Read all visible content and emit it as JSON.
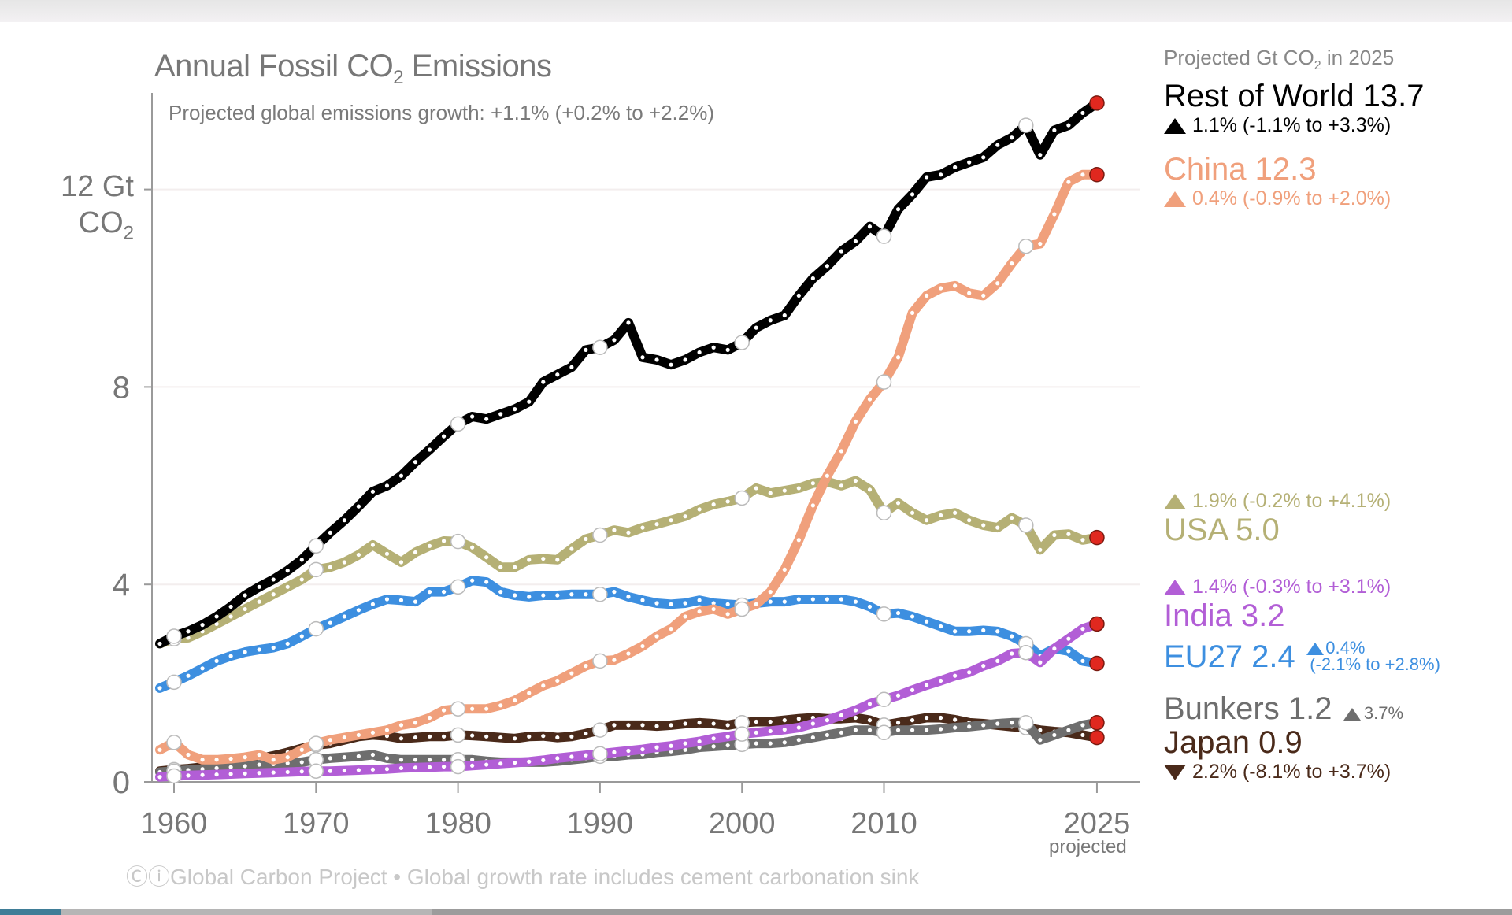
{
  "title": "Annual Fossil CO",
  "title_sub": "2",
  "title_end": " Emissions",
  "subtitle": "Projected global emissions growth: +1.1% (+0.2% to +2.2%)",
  "y_unit_line1": "12 Gt",
  "y_unit_line2": "CO",
  "y_unit_sub": "2",
  "x_projected_label": "projected",
  "footer": "ⒸⓘGlobal Carbon Project  •  Global growth rate includes cement carbonation sink",
  "legend": {
    "header_pre": "Projected Gt CO",
    "header_sub": "2",
    "header_post": " in 2025",
    "entries": [
      {
        "key": "row",
        "name": "Rest of World 13.7",
        "change": "1.1% (-1.1% to +3.3%)",
        "direction": "up",
        "color": "#000000"
      },
      {
        "key": "china",
        "name": "China 12.3",
        "change": "0.4% (-0.9% to +2.0%)",
        "direction": "up",
        "color": "#f0a07c"
      },
      {
        "key": "usa",
        "name": "USA 5.0",
        "change": "1.9% (-0.2% to +4.1%)",
        "direction": "up",
        "color": "#b5b075"
      },
      {
        "key": "india",
        "name": "India 3.2",
        "change": "1.4% (-0.3% to +3.1%)",
        "direction": "up",
        "color": "#b25ed6"
      },
      {
        "key": "eu27",
        "name": "EU27 2.4",
        "change_line1": "0.4%",
        "change_line2": "(-2.1% to +2.8%)",
        "direction": "up",
        "color": "#3d8fe0"
      },
      {
        "key": "bunkers",
        "name": "Bunkers 1.2",
        "change": "3.7%",
        "direction": "up",
        "color": "#6e6e6e"
      },
      {
        "key": "japan",
        "name": "Japan 0.9",
        "change": "2.2% (-8.1% to +3.7%)",
        "direction": "down",
        "color": "#4a2a1a"
      }
    ]
  },
  "chart_data": {
    "type": "line",
    "title": "Annual Fossil CO2 Emissions",
    "subtitle": "Projected global emissions growth: +1.1% (+0.2% to +2.2%)",
    "xlabel": "",
    "ylabel": "Gt CO2",
    "xlim": [
      1958.5,
      2027
    ],
    "ylim": [
      0,
      14
    ],
    "yticks": [
      0,
      4,
      8,
      12
    ],
    "ytick_labels": [
      "0",
      "4",
      "8",
      "12 Gt"
    ],
    "xticks": [
      1960,
      1970,
      1980,
      1990,
      2000,
      2010,
      2025
    ],
    "xtick_labels": [
      "1960",
      "1970",
      "1980",
      "1990",
      "2000",
      "2010",
      "2025"
    ],
    "grid": "horizontal",
    "legend": "right",
    "x_start": 1959,
    "x_end": 2025,
    "highlight_years": [
      1960,
      1970,
      1980,
      1990,
      2000,
      2010,
      2020
    ],
    "projected_year": 2025,
    "series": [
      {
        "name": "Rest of World",
        "color": "#000000",
        "values": [
          2.8,
          2.95,
          3.05,
          3.18,
          3.35,
          3.55,
          3.78,
          3.95,
          4.1,
          4.28,
          4.5,
          4.78,
          5.05,
          5.3,
          5.58,
          5.88,
          6.0,
          6.2,
          6.48,
          6.73,
          7.0,
          7.25,
          7.4,
          7.35,
          7.45,
          7.55,
          7.7,
          8.1,
          8.25,
          8.4,
          8.75,
          8.8,
          8.95,
          9.3,
          8.6,
          8.55,
          8.45,
          8.55,
          8.7,
          8.8,
          8.75,
          8.9,
          9.2,
          9.35,
          9.45,
          9.85,
          10.2,
          10.45,
          10.75,
          10.95,
          11.25,
          11.05,
          11.6,
          11.9,
          12.25,
          12.3,
          12.45,
          12.55,
          12.65,
          12.9,
          13.05,
          13.3,
          12.7,
          13.2,
          13.3,
          13.55,
          13.75
        ]
      },
      {
        "name": "China",
        "color": "#f0a07c",
        "values": [
          0.65,
          0.8,
          0.55,
          0.45,
          0.45,
          0.47,
          0.5,
          0.55,
          0.45,
          0.5,
          0.65,
          0.78,
          0.85,
          0.9,
          0.95,
          1.0,
          1.05,
          1.15,
          1.2,
          1.3,
          1.45,
          1.48,
          1.48,
          1.48,
          1.55,
          1.65,
          1.8,
          1.95,
          2.05,
          2.2,
          2.35,
          2.45,
          2.47,
          2.6,
          2.75,
          2.95,
          3.1,
          3.35,
          3.45,
          3.5,
          3.4,
          3.5,
          3.6,
          3.85,
          4.3,
          4.9,
          5.6,
          6.2,
          6.7,
          7.3,
          7.75,
          8.1,
          8.6,
          9.5,
          9.85,
          10.0,
          10.05,
          9.9,
          9.85,
          10.1,
          10.5,
          10.85,
          10.9,
          11.5,
          12.15,
          12.3,
          12.3
        ]
      },
      {
        "name": "USA",
        "color": "#b5b075",
        "values": [
          2.8,
          2.9,
          2.92,
          3.05,
          3.2,
          3.35,
          3.5,
          3.65,
          3.8,
          3.95,
          4.1,
          4.3,
          4.35,
          4.45,
          4.6,
          4.8,
          4.62,
          4.45,
          4.65,
          4.78,
          4.88,
          4.87,
          4.75,
          4.55,
          4.35,
          4.35,
          4.5,
          4.52,
          4.5,
          4.72,
          4.92,
          5.0,
          5.1,
          5.05,
          5.15,
          5.22,
          5.3,
          5.38,
          5.52,
          5.62,
          5.68,
          5.75,
          5.95,
          5.85,
          5.9,
          5.95,
          6.05,
          6.08,
          6.0,
          6.1,
          5.92,
          5.45,
          5.65,
          5.45,
          5.3,
          5.4,
          5.45,
          5.3,
          5.2,
          5.15,
          5.35,
          5.2,
          4.7,
          5.0,
          5.02,
          4.9,
          4.95
        ]
      },
      {
        "name": "India",
        "color": "#b25ed6",
        "values": [
          0.1,
          0.12,
          0.13,
          0.14,
          0.15,
          0.16,
          0.17,
          0.18,
          0.19,
          0.2,
          0.21,
          0.22,
          0.22,
          0.23,
          0.24,
          0.25,
          0.26,
          0.28,
          0.29,
          0.3,
          0.31,
          0.31,
          0.33,
          0.35,
          0.37,
          0.39,
          0.41,
          0.44,
          0.48,
          0.51,
          0.54,
          0.57,
          0.6,
          0.63,
          0.66,
          0.7,
          0.73,
          0.78,
          0.82,
          0.88,
          0.92,
          0.97,
          1.0,
          1.03,
          1.06,
          1.1,
          1.18,
          1.25,
          1.35,
          1.45,
          1.58,
          1.67,
          1.75,
          1.86,
          1.96,
          2.05,
          2.15,
          2.22,
          2.35,
          2.45,
          2.6,
          2.62,
          2.42,
          2.7,
          2.9,
          3.1,
          3.2
        ]
      },
      {
        "name": "EU27",
        "color": "#3d8fe0",
        "values": [
          1.9,
          2.02,
          2.15,
          2.3,
          2.45,
          2.55,
          2.63,
          2.68,
          2.72,
          2.8,
          2.95,
          3.1,
          3.22,
          3.35,
          3.48,
          3.6,
          3.7,
          3.68,
          3.65,
          3.85,
          3.85,
          3.95,
          4.08,
          4.05,
          3.85,
          3.78,
          3.75,
          3.78,
          3.78,
          3.8,
          3.8,
          3.8,
          3.85,
          3.75,
          3.68,
          3.62,
          3.6,
          3.62,
          3.68,
          3.62,
          3.6,
          3.58,
          3.62,
          3.65,
          3.65,
          3.7,
          3.7,
          3.7,
          3.7,
          3.65,
          3.55,
          3.4,
          3.42,
          3.35,
          3.25,
          3.15,
          3.05,
          3.05,
          3.07,
          3.05,
          2.95,
          2.8,
          2.55,
          2.7,
          2.65,
          2.45,
          2.4
        ]
      },
      {
        "name": "Bunkers",
        "color": "#6e6e6e",
        "values": [
          0.2,
          0.22,
          0.24,
          0.26,
          0.28,
          0.3,
          0.32,
          0.35,
          0.36,
          0.38,
          0.4,
          0.45,
          0.48,
          0.5,
          0.52,
          0.55,
          0.48,
          0.45,
          0.45,
          0.45,
          0.45,
          0.45,
          0.45,
          0.42,
          0.4,
          0.4,
          0.4,
          0.4,
          0.42,
          0.45,
          0.48,
          0.52,
          0.52,
          0.55,
          0.56,
          0.6,
          0.62,
          0.65,
          0.7,
          0.72,
          0.74,
          0.76,
          0.78,
          0.78,
          0.8,
          0.85,
          0.9,
          0.95,
          1.0,
          1.05,
          1.05,
          1.0,
          1.05,
          1.05,
          1.05,
          1.07,
          1.1,
          1.12,
          1.15,
          1.18,
          1.2,
          1.2,
          0.85,
          0.95,
          1.05,
          1.15,
          1.2
        ]
      },
      {
        "name": "Japan",
        "color": "#4a2a1a",
        "values": [
          0.22,
          0.25,
          0.27,
          0.3,
          0.34,
          0.38,
          0.42,
          0.47,
          0.53,
          0.6,
          0.68,
          0.75,
          0.78,
          0.85,
          0.92,
          0.95,
          0.93,
          0.88,
          0.9,
          0.92,
          0.92,
          0.95,
          0.94,
          0.92,
          0.9,
          0.88,
          0.92,
          0.93,
          0.9,
          0.92,
          0.98,
          1.05,
          1.15,
          1.15,
          1.15,
          1.13,
          1.15,
          1.18,
          1.2,
          1.18,
          1.15,
          1.2,
          1.22,
          1.22,
          1.25,
          1.28,
          1.3,
          1.28,
          1.28,
          1.3,
          1.25,
          1.15,
          1.2,
          1.25,
          1.3,
          1.3,
          1.26,
          1.2,
          1.18,
          1.15,
          1.12,
          1.1,
          1.05,
          1.02,
          1.0,
          0.95,
          0.9
        ]
      }
    ]
  }
}
